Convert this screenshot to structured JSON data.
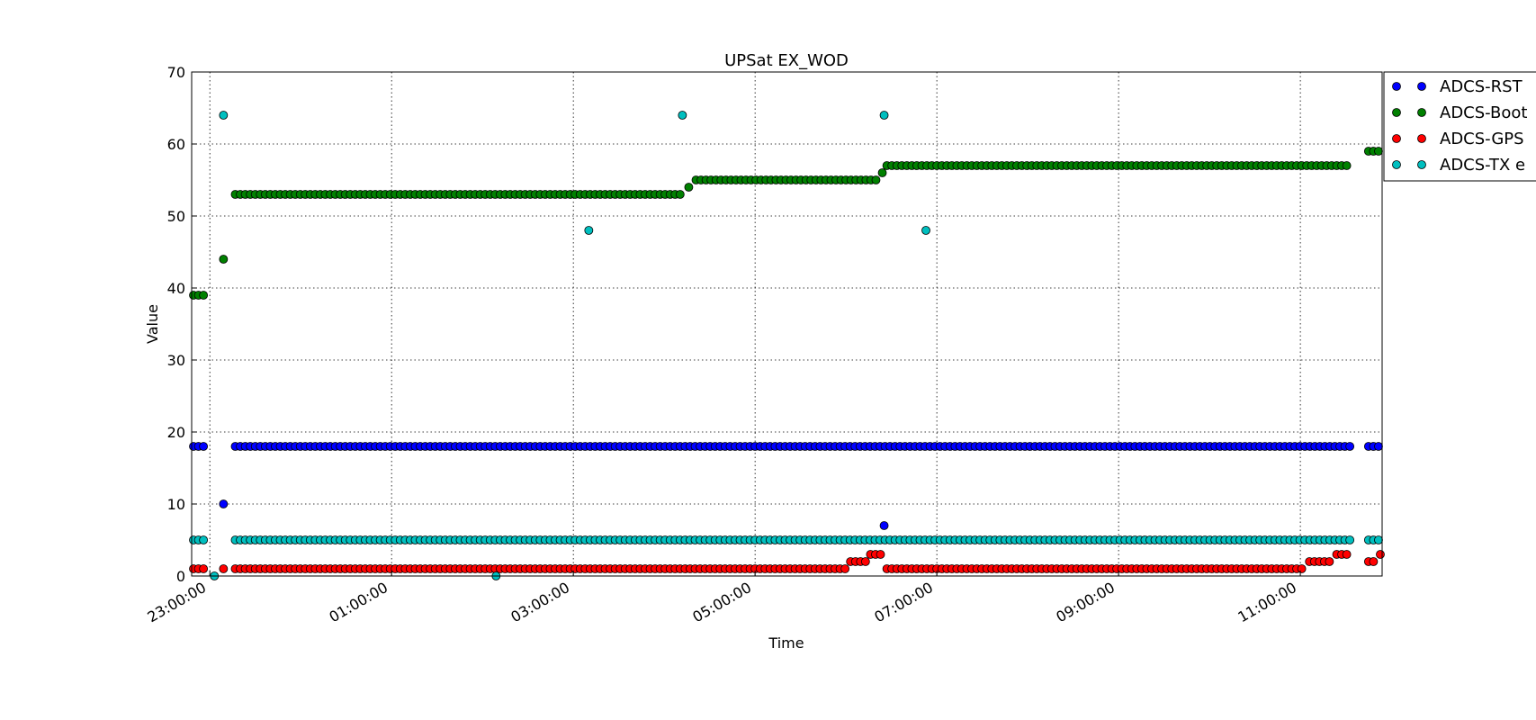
{
  "chart_data": {
    "type": "scatter",
    "title": "UPSat EX_WOD",
    "xlabel": "Time",
    "ylabel": "Value",
    "ylim": [
      0,
      70
    ],
    "xlim_hours": [
      -1.2,
      11.9
    ],
    "yticks": [
      0,
      10,
      20,
      30,
      40,
      50,
      60,
      70
    ],
    "xticks": [
      {
        "label": "23:00:00",
        "h": -1
      },
      {
        "label": "01:00:00",
        "h": 1
      },
      {
        "label": "03:00:00",
        "h": 3
      },
      {
        "label": "05:00:00",
        "h": 5
      },
      {
        "label": "07:00:00",
        "h": 7
      },
      {
        "label": "09:00:00",
        "h": 9
      },
      {
        "label": "11:00:00",
        "h": 11
      }
    ],
    "grid": true,
    "legend_position": "top-right (outside, clipped)",
    "series": [
      {
        "name": "ADCS-RST",
        "color": "#0000ff",
        "segments": [
          {
            "from": -1.18,
            "to": -1.05,
            "value": 18
          },
          {
            "from": -0.72,
            "to": 0.78,
            "value": 18
          },
          {
            "from": 0.82,
            "to": 11.55,
            "value": 18
          },
          {
            "from": 11.75,
            "to": 11.9,
            "value": 18
          }
        ],
        "points": [
          [
            -0.85,
            10
          ],
          [
            6.42,
            7
          ]
        ]
      },
      {
        "name": "ADCS-Boot",
        "color": "#008000",
        "segments": [
          {
            "from": -1.18,
            "to": -1.05,
            "value": 39
          },
          {
            "from": -0.72,
            "to": 0.78,
            "value": 53
          },
          {
            "from": 0.82,
            "to": 4.22,
            "value": 53
          },
          {
            "from": 4.35,
            "to": 6.35,
            "value": 55
          },
          {
            "from": 6.45,
            "to": 11.55,
            "value": 57
          },
          {
            "from": 11.75,
            "to": 11.9,
            "value": 59
          }
        ],
        "points": [
          [
            -0.85,
            44
          ],
          [
            4.27,
            54
          ],
          [
            6.4,
            56
          ]
        ]
      },
      {
        "name": "ADCS-GPS",
        "color": "#ff0000",
        "segments": [
          {
            "from": -1.18,
            "to": -1.05,
            "value": 1
          },
          {
            "from": -0.72,
            "to": 0.78,
            "value": 1
          },
          {
            "from": 0.82,
            "to": 6.0,
            "value": 1
          },
          {
            "from": 6.05,
            "to": 6.25,
            "value": 2
          },
          {
            "from": 6.27,
            "to": 6.38,
            "value": 3
          },
          {
            "from": 6.45,
            "to": 11.05,
            "value": 1
          },
          {
            "from": 11.1,
            "to": 11.35,
            "value": 2
          },
          {
            "from": 11.4,
            "to": 11.52,
            "value": 3
          },
          {
            "from": 11.75,
            "to": 11.85,
            "value": 2
          }
        ],
        "points": [
          [
            -0.85,
            1
          ],
          [
            11.88,
            3
          ]
        ]
      },
      {
        "name": "ADCS-TX e",
        "color": "#00bfbf",
        "segments": [
          {
            "from": -1.18,
            "to": -1.05,
            "value": 5
          },
          {
            "from": -0.72,
            "to": 0.78,
            "value": 5
          },
          {
            "from": 0.82,
            "to": 11.55,
            "value": 5
          },
          {
            "from": 11.75,
            "to": 11.9,
            "value": 5
          }
        ],
        "points": [
          [
            -0.85,
            64
          ],
          [
            3.17,
            48
          ],
          [
            4.2,
            64
          ],
          [
            6.42,
            64
          ],
          [
            6.88,
            48
          ],
          [
            -0.95,
            0
          ],
          [
            2.15,
            0
          ]
        ]
      }
    ]
  }
}
